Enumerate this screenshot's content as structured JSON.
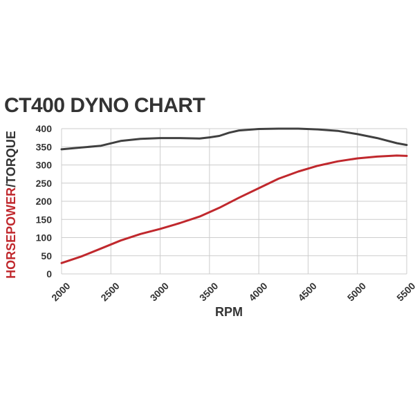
{
  "colors": {
    "horsepower": "#c0282d",
    "torque": "#404040",
    "grid": "#cccccc",
    "text": "#333333"
  },
  "chart_data": {
    "type": "line",
    "title": "CT400 DYNO CHART",
    "xlabel": "RPM",
    "ylabel_parts": [
      "HORSEPOWER",
      "/TORQUE"
    ],
    "xlim": [
      2000,
      5500
    ],
    "ylim": [
      0,
      400
    ],
    "xticks": [
      2000,
      2500,
      3000,
      3500,
      4000,
      4500,
      5000,
      5500
    ],
    "yticks": [
      0,
      50,
      100,
      150,
      200,
      250,
      300,
      350,
      400
    ],
    "grid": true,
    "series": [
      {
        "key": "horsepower",
        "x": [
          2000,
          2200,
          2400,
          2600,
          2800,
          3000,
          3200,
          3400,
          3600,
          3800,
          4000,
          4200,
          4400,
          4600,
          4800,
          5000,
          5200,
          5400,
          5500
        ],
        "values": [
          30,
          48,
          70,
          92,
          110,
          124,
          140,
          158,
          182,
          210,
          236,
          262,
          282,
          298,
          310,
          318,
          323,
          326,
          325
        ]
      },
      {
        "key": "torque",
        "x": [
          2000,
          2200,
          2400,
          2600,
          2800,
          3000,
          3200,
          3400,
          3500,
          3600,
          3700,
          3800,
          4000,
          4200,
          4400,
          4600,
          4800,
          5000,
          5200,
          5400,
          5500
        ],
        "values": [
          343,
          348,
          353,
          366,
          372,
          374,
          374,
          373,
          376,
          380,
          389,
          395,
          399,
          400,
          400,
          398,
          394,
          385,
          374,
          360,
          355
        ]
      }
    ]
  }
}
